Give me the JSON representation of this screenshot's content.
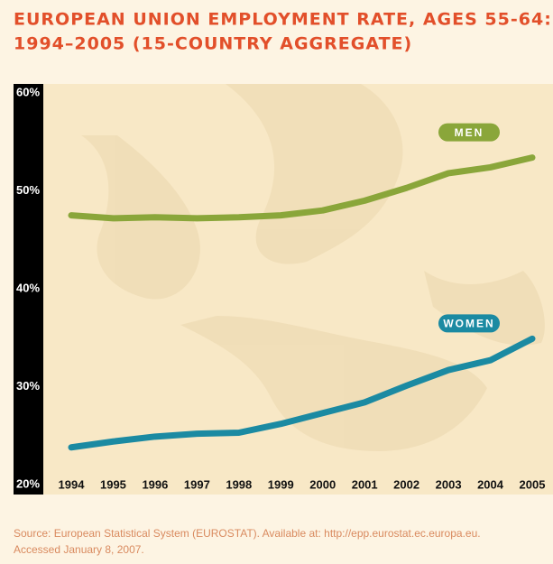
{
  "chart_data": {
    "type": "line",
    "title": [
      "EUROPEAN UNION EMPLOYMENT RATE, AGES 55-64:",
      "1994–2005 (15-COUNTRY AGGREGATE)"
    ],
    "categories": [
      "1994",
      "1995",
      "1996",
      "1997",
      "1998",
      "1999",
      "2000",
      "2001",
      "2002",
      "2003",
      "2004",
      "2005"
    ],
    "series": [
      {
        "name": "MEN",
        "color": "#8aa63a",
        "values": [
          47.5,
          47.2,
          47.3,
          47.2,
          47.3,
          47.5,
          48.0,
          49.0,
          50.3,
          51.8,
          52.4,
          53.4
        ]
      },
      {
        "name": "WOMEN",
        "color": "#1b8aa2",
        "values": [
          23.8,
          24.4,
          24.9,
          25.2,
          25.3,
          26.2,
          27.3,
          28.4,
          30.1,
          31.7,
          32.7,
          34.9
        ]
      }
    ],
    "ylim": [
      20,
      60
    ],
    "yticks": [
      {
        "value": 20,
        "label": "20%"
      },
      {
        "value": 30,
        "label": "30%"
      },
      {
        "value": 40,
        "label": "40%"
      },
      {
        "value": 50,
        "label": "50%"
      },
      {
        "value": 60,
        "label": "60%"
      }
    ],
    "source": [
      "Source: European Statistical System (EUROSTAT). Available at: http://epp.eurostat.ec.europa.eu.",
      "Accessed January 8, 2007."
    ]
  }
}
